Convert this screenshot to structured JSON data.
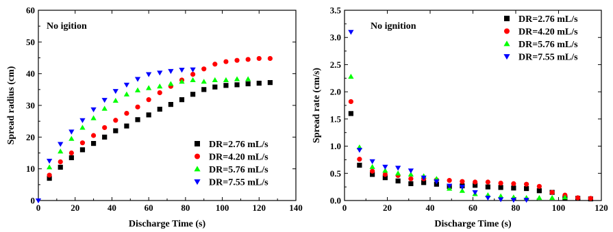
{
  "chart_data": [
    {
      "type": "scatter",
      "title": "",
      "annotation": "No igition",
      "xlabel": "Discharge Time (s)",
      "ylabel": "Spread radius (cm)",
      "xlim": [
        0,
        140
      ],
      "ylim": [
        0,
        60
      ],
      "xticks": [
        0,
        20,
        40,
        60,
        80,
        100,
        120,
        140
      ],
      "yticks": [
        0,
        10,
        20,
        30,
        40,
        50,
        60
      ],
      "grid": false,
      "legend_position": "bottom-right",
      "series": [
        {
          "name": "DR=2.76 mL/s",
          "marker": "square",
          "color": "#000000",
          "points": [
            [
              6,
              7
            ],
            [
              12,
              10.5
            ],
            [
              18,
              13.5
            ],
            [
              24,
              16
            ],
            [
              30,
              18
            ],
            [
              36,
              20
            ],
            [
              42,
              22
            ],
            [
              48,
              23.5
            ],
            [
              54,
              25.5
            ],
            [
              60,
              27
            ],
            [
              66,
              28.8
            ],
            [
              72,
              30.3
            ],
            [
              78,
              31.8
            ],
            [
              84,
              33.5
            ],
            [
              90,
              35
            ],
            [
              96,
              35.8
            ],
            [
              102,
              36.3
            ],
            [
              108,
              36.5
            ],
            [
              114,
              36.8
            ],
            [
              120,
              37
            ],
            [
              126,
              37.2
            ]
          ]
        },
        {
          "name": "DR=4.20 mL/s",
          "marker": "circle",
          "color": "#ff0000",
          "points": [
            [
              6,
              8
            ],
            [
              12,
              12.2
            ],
            [
              18,
              15
            ],
            [
              24,
              18.2
            ],
            [
              30,
              20.5
            ],
            [
              36,
              23
            ],
            [
              42,
              25.3
            ],
            [
              48,
              27.5
            ],
            [
              54,
              29.5
            ],
            [
              60,
              31.8
            ],
            [
              66,
              34
            ],
            [
              72,
              36
            ],
            [
              78,
              38
            ],
            [
              84,
              39.8
            ],
            [
              90,
              41.5
            ],
            [
              96,
              43
            ],
            [
              102,
              43.8
            ],
            [
              108,
              44.2
            ],
            [
              114,
              44.5
            ],
            [
              120,
              44.8
            ],
            [
              126,
              44.8
            ]
          ]
        },
        {
          "name": "DR=5.76 mL/s",
          "marker": "triangle-up",
          "color": "#00ff00",
          "points": [
            [
              6,
              10.5
            ],
            [
              12,
              15.5
            ],
            [
              18,
              19.5
            ],
            [
              24,
              23
            ],
            [
              30,
              26
            ],
            [
              36,
              29
            ],
            [
              42,
              31.5
            ],
            [
              48,
              33.5
            ],
            [
              54,
              34.8
            ],
            [
              60,
              35.5
            ],
            [
              66,
              36
            ],
            [
              72,
              36.8
            ],
            [
              78,
              37.5
            ],
            [
              84,
              38
            ],
            [
              90,
              37.5
            ],
            [
              96,
              38
            ],
            [
              102,
              38
            ],
            [
              108,
              38.3
            ],
            [
              114,
              38.3
            ]
          ]
        },
        {
          "name": "DR=7.55 mL/s",
          "marker": "triangle-down",
          "color": "#0000ff",
          "points": [
            [
              0,
              0
            ],
            [
              6,
              12.5
            ],
            [
              12,
              17.8
            ],
            [
              18,
              21.7
            ],
            [
              24,
              25.3
            ],
            [
              30,
              28.7
            ],
            [
              36,
              31.7
            ],
            [
              42,
              34.5
            ],
            [
              48,
              36.5
            ],
            [
              54,
              38.3
            ],
            [
              60,
              39.8
            ],
            [
              66,
              40.3
            ],
            [
              72,
              40.8
            ],
            [
              78,
              41.2
            ],
            [
              84,
              41.3
            ]
          ]
        }
      ]
    },
    {
      "type": "scatter",
      "title": "",
      "annotation": "No ignition",
      "xlabel": "Discharge Time (s)",
      "ylabel": "Spread rate (cm/s)",
      "xlim": [
        0,
        120
      ],
      "ylim": [
        0,
        3.5
      ],
      "xticks": [
        0,
        20,
        40,
        60,
        80,
        100,
        120
      ],
      "yticks": [
        0.0,
        0.5,
        1.0,
        1.5,
        2.0,
        2.5,
        3.0,
        3.5
      ],
      "grid": false,
      "legend_position": "top-right",
      "series": [
        {
          "name": "DR=2.76 mL/s",
          "marker": "square",
          "color": "#000000",
          "points": [
            [
              3,
              1.6
            ],
            [
              7,
              0.65
            ],
            [
              13,
              0.48
            ],
            [
              19,
              0.42
            ],
            [
              25,
              0.36
            ],
            [
              31,
              0.31
            ],
            [
              37,
              0.33
            ],
            [
              43,
              0.3
            ],
            [
              49,
              0.26
            ],
            [
              55,
              0.27
            ],
            [
              61,
              0.28
            ],
            [
              67,
              0.25
            ],
            [
              73,
              0.24
            ],
            [
              79,
              0.23
            ],
            [
              85,
              0.22
            ],
            [
              91,
              0.18
            ],
            [
              97,
              0.15
            ],
            [
              103,
              0.05
            ],
            [
              109,
              0.04
            ],
            [
              115,
              0.03
            ]
          ]
        },
        {
          "name": "DR=4.20 mL/s",
          "marker": "circle",
          "color": "#ff0000",
          "points": [
            [
              3,
              1.82
            ],
            [
              7,
              0.76
            ],
            [
              13,
              0.54
            ],
            [
              19,
              0.48
            ],
            [
              25,
              0.46
            ],
            [
              31,
              0.4
            ],
            [
              37,
              0.4
            ],
            [
              43,
              0.38
            ],
            [
              49,
              0.37
            ],
            [
              55,
              0.35
            ],
            [
              61,
              0.34
            ],
            [
              67,
              0.34
            ],
            [
              73,
              0.32
            ],
            [
              79,
              0.31
            ],
            [
              85,
              0.3
            ],
            [
              91,
              0.26
            ],
            [
              97,
              0.15
            ],
            [
              103,
              0.1
            ],
            [
              109,
              0.05
            ],
            [
              115,
              0.04
            ]
          ]
        },
        {
          "name": "DR=5.76 mL/s",
          "marker": "triangle-up",
          "color": "#00ff00",
          "points": [
            [
              3,
              2.28
            ],
            [
              7,
              0.98
            ],
            [
              13,
              0.62
            ],
            [
              19,
              0.55
            ],
            [
              25,
              0.5
            ],
            [
              31,
              0.48
            ],
            [
              37,
              0.45
            ],
            [
              43,
              0.4
            ],
            [
              49,
              0.22
            ],
            [
              55,
              0.18
            ],
            [
              61,
              0.12
            ],
            [
              67,
              0.1
            ],
            [
              73,
              0.08
            ],
            [
              79,
              0.06
            ],
            [
              85,
              0.05
            ],
            [
              91,
              0.05
            ],
            [
              97,
              0.05
            ],
            [
              103,
              0.06
            ]
          ]
        },
        {
          "name": "DR=7.55 mL/s",
          "marker": "triangle-down",
          "color": "#0000ff",
          "points": [
            [
              3,
              3.1
            ],
            [
              7,
              0.93
            ],
            [
              13,
              0.72
            ],
            [
              19,
              0.62
            ],
            [
              25,
              0.6
            ],
            [
              31,
              0.55
            ],
            [
              37,
              0.42
            ],
            [
              43,
              0.35
            ],
            [
              49,
              0.27
            ],
            [
              55,
              0.25
            ],
            [
              61,
              0.15
            ],
            [
              67,
              0.05
            ],
            [
              73,
              0.02
            ],
            [
              79,
              0.01
            ],
            [
              85,
              0.01
            ]
          ]
        }
      ]
    }
  ]
}
